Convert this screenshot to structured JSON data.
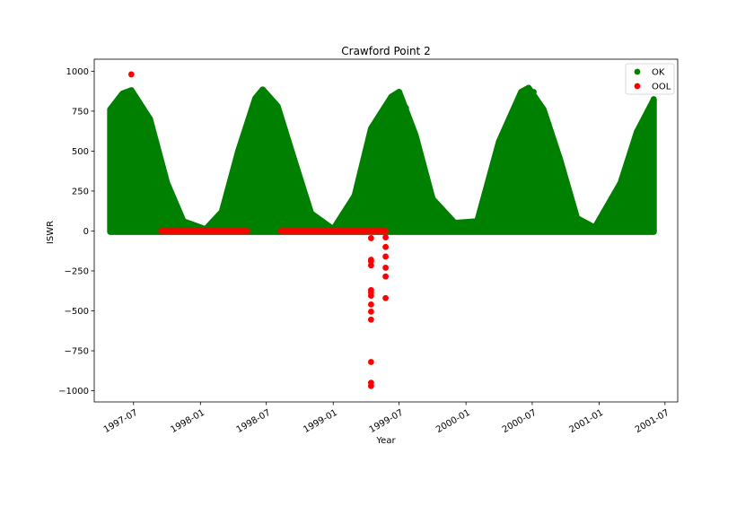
{
  "chart_data": {
    "type": "scatter",
    "title": "Crawford Point 2",
    "xlabel": "Year",
    "ylabel": "ISWR",
    "x_axis_kind": "date",
    "xlim": [
      "1997-03-15",
      "2001-08-05"
    ],
    "ylim": [
      -1070,
      1075
    ],
    "x_ticks": [
      "1997-07",
      "1998-01",
      "1998-07",
      "1999-01",
      "1999-07",
      "2000-01",
      "2000-07",
      "2001-01",
      "2001-07"
    ],
    "y_ticks": [
      1000,
      750,
      500,
      250,
      0,
      -250,
      -500,
      -750,
      -1000
    ],
    "grid": false,
    "legend_position": "top-right",
    "series": [
      {
        "name": "OK",
        "color": "#008000",
        "marker": "circle",
        "seasonal_peaks_outline": [
          {
            "x": "1997-04-28",
            "y": 760
          },
          {
            "x": "1997-06-01",
            "y": 860
          },
          {
            "x": "1997-06-25",
            "y": 880
          },
          {
            "x": "1997-08-15",
            "y": 700
          },
          {
            "x": "1997-10-01",
            "y": 300
          },
          {
            "x": "1997-11-15",
            "y": 60
          },
          {
            "x": "1998-01-15",
            "y": 10
          },
          {
            "x": "1998-03-01",
            "y": 120
          },
          {
            "x": "1998-04-15",
            "y": 500
          },
          {
            "x": "1998-06-01",
            "y": 830
          },
          {
            "x": "1998-06-21",
            "y": 885
          },
          {
            "x": "1998-08-01",
            "y": 780
          },
          {
            "x": "1998-09-15",
            "y": 450
          },
          {
            "x": "1998-11-01",
            "y": 110
          },
          {
            "x": "1999-01-01",
            "y": 10
          },
          {
            "x": "1999-03-01",
            "y": 220
          },
          {
            "x": "1999-04-15",
            "y": 640
          },
          {
            "x": "1999-06-10",
            "y": 840
          },
          {
            "x": "1999-07-01",
            "y": 870
          },
          {
            "x": "1999-08-15",
            "y": 600
          },
          {
            "x": "1999-10-01",
            "y": 200
          },
          {
            "x": "1999-12-01",
            "y": 50
          },
          {
            "x": "2000-02-01",
            "y": 60
          },
          {
            "x": "2000-04-01",
            "y": 560
          },
          {
            "x": "2000-06-01",
            "y": 870
          },
          {
            "x": "2000-06-21",
            "y": 895
          },
          {
            "x": "2000-08-01",
            "y": 760
          },
          {
            "x": "2000-09-15",
            "y": 450
          },
          {
            "x": "2000-11-01",
            "y": 80
          },
          {
            "x": "2000-12-20",
            "y": 20
          },
          {
            "x": "2001-03-01",
            "y": 300
          },
          {
            "x": "2001-04-15",
            "y": 620
          },
          {
            "x": "2001-05-31",
            "y": 820
          }
        ],
        "notable_points": [
          {
            "x": "1997-06-25",
            "y": 880
          },
          {
            "x": "1998-06-21",
            "y": 885
          },
          {
            "x": "1999-07-01",
            "y": 870
          },
          {
            "x": "1999-07-20",
            "y": 770
          },
          {
            "x": "2000-06-21",
            "y": 895
          },
          {
            "x": "2000-07-05",
            "y": 870
          },
          {
            "x": "2000-08-15",
            "y": 670
          },
          {
            "x": "2001-05-31",
            "y": 825
          }
        ]
      },
      {
        "name": "OOL",
        "color": "#ff0000",
        "marker": "circle",
        "x_range_1": [
          "1997-09-15",
          "1998-05-10"
        ],
        "x_range_2": [
          "1998-08-10",
          "1999-05-25"
        ],
        "base_value": 0,
        "points": [
          {
            "x": "1997-06-25",
            "y": 980
          },
          {
            "x": "1999-04-15",
            "y": -45
          },
          {
            "x": "1999-04-15",
            "y": -180
          },
          {
            "x": "1999-04-15",
            "y": -190
          },
          {
            "x": "1999-04-15",
            "y": -215
          },
          {
            "x": "1999-04-15",
            "y": -370
          },
          {
            "x": "1999-04-15",
            "y": -385
          },
          {
            "x": "1999-04-15",
            "y": -405
          },
          {
            "x": "1999-04-15",
            "y": -460
          },
          {
            "x": "1999-04-15",
            "y": -505
          },
          {
            "x": "1999-04-15",
            "y": -555
          },
          {
            "x": "1999-04-15",
            "y": -820
          },
          {
            "x": "1999-04-15",
            "y": -950
          },
          {
            "x": "1999-04-15",
            "y": -970
          },
          {
            "x": "1999-05-25",
            "y": -40
          },
          {
            "x": "1999-05-25",
            "y": -100
          },
          {
            "x": "1999-05-25",
            "y": -160
          },
          {
            "x": "1999-05-25",
            "y": -230
          },
          {
            "x": "1999-05-25",
            "y": -285
          },
          {
            "x": "1999-05-25",
            "y": -420
          }
        ]
      }
    ]
  }
}
